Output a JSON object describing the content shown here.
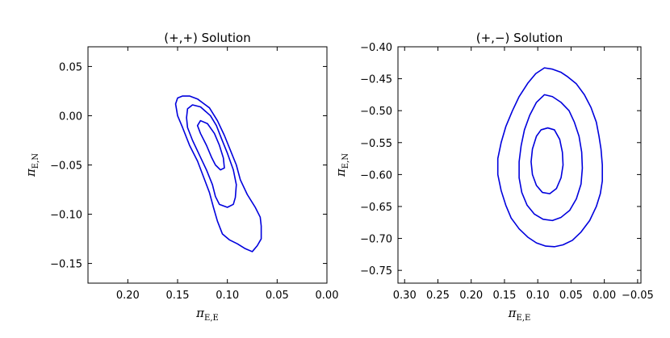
{
  "chart_data": [
    {
      "type": "contour",
      "title": "(+,+) Solution",
      "xlabel": "πE,E",
      "ylabel": "πE,N",
      "xlim": [
        0.24,
        0.0
      ],
      "ylim": [
        -0.17,
        0.07
      ],
      "xticks": [
        "0.20",
        "0.15",
        "0.10",
        "0.05",
        "0.00"
      ],
      "xtick_values": [
        0.2,
        0.15,
        0.1,
        0.05,
        0.0
      ],
      "yticks": [
        "0.05",
        "0.00",
        "−0.05",
        "−0.10",
        "−0.15"
      ],
      "ytick_values": [
        0.05,
        0.0,
        -0.05,
        -0.1,
        -0.15
      ],
      "grid": false,
      "line_color": "#0000dd",
      "contours": [
        {
          "level": "outer",
          "points": [
            [
              0.145,
              0.02
            ],
            [
              0.138,
              0.02
            ],
            [
              0.13,
              0.017
            ],
            [
              0.118,
              0.008
            ],
            [
              0.11,
              -0.005
            ],
            [
              0.103,
              -0.02
            ],
            [
              0.097,
              -0.035
            ],
            [
              0.091,
              -0.05
            ],
            [
              0.087,
              -0.065
            ],
            [
              0.08,
              -0.08
            ],
            [
              0.072,
              -0.093
            ],
            [
              0.067,
              -0.103
            ],
            [
              0.066,
              -0.112
            ],
            [
              0.066,
              -0.125
            ],
            [
              0.07,
              -0.132
            ],
            [
              0.075,
              -0.138
            ],
            [
              0.082,
              -0.135
            ],
            [
              0.09,
              -0.13
            ],
            [
              0.098,
              -0.126
            ],
            [
              0.105,
              -0.12
            ],
            [
              0.11,
              -0.107
            ],
            [
              0.114,
              -0.093
            ],
            [
              0.118,
              -0.078
            ],
            [
              0.124,
              -0.062
            ],
            [
              0.13,
              -0.046
            ],
            [
              0.138,
              -0.03
            ],
            [
              0.145,
              -0.012
            ],
            [
              0.15,
              0.0
            ],
            [
              0.152,
              0.012
            ],
            [
              0.15,
              0.018
            ],
            [
              0.145,
              0.02
            ]
          ]
        },
        {
          "level": "middle",
          "points": [
            [
              0.135,
              0.011
            ],
            [
              0.127,
              0.009
            ],
            [
              0.117,
              0.0
            ],
            [
              0.111,
              -0.01
            ],
            [
              0.106,
              -0.023
            ],
            [
              0.1,
              -0.038
            ],
            [
              0.094,
              -0.055
            ],
            [
              0.091,
              -0.07
            ],
            [
              0.092,
              -0.083
            ],
            [
              0.094,
              -0.09
            ],
            [
              0.1,
              -0.093
            ],
            [
              0.108,
              -0.09
            ],
            [
              0.112,
              -0.082
            ],
            [
              0.115,
              -0.07
            ],
            [
              0.121,
              -0.055
            ],
            [
              0.128,
              -0.04
            ],
            [
              0.135,
              -0.025
            ],
            [
              0.14,
              -0.012
            ],
            [
              0.141,
              -0.002
            ],
            [
              0.14,
              0.007
            ],
            [
              0.135,
              0.011
            ]
          ]
        },
        {
          "level": "inner",
          "points": [
            [
              0.127,
              -0.005
            ],
            [
              0.12,
              -0.008
            ],
            [
              0.113,
              -0.018
            ],
            [
              0.108,
              -0.03
            ],
            [
              0.104,
              -0.043
            ],
            [
              0.103,
              -0.053
            ],
            [
              0.107,
              -0.055
            ],
            [
              0.112,
              -0.05
            ],
            [
              0.116,
              -0.042
            ],
            [
              0.121,
              -0.03
            ],
            [
              0.127,
              -0.018
            ],
            [
              0.13,
              -0.01
            ],
            [
              0.127,
              -0.005
            ]
          ]
        }
      ]
    },
    {
      "type": "contour",
      "title": "(+,−) Solution",
      "xlabel": "πE,E",
      "ylabel": "πE,N",
      "xlim": [
        0.31,
        -0.055
      ],
      "ylim": [
        -0.77,
        -0.4
      ],
      "xticks": [
        "0.30",
        "0.25",
        "0.20",
        "0.15",
        "0.10",
        "0.05",
        "0.00",
        "−0.05"
      ],
      "xtick_values": [
        0.3,
        0.25,
        0.2,
        0.15,
        0.1,
        0.05,
        0.0,
        -0.05
      ],
      "yticks": [
        "−0.40",
        "−0.45",
        "−0.50",
        "−0.55",
        "−0.60",
        "−0.65",
        "−0.70",
        "−0.75"
      ],
      "ytick_values": [
        -0.4,
        -0.45,
        -0.5,
        -0.55,
        -0.6,
        -0.65,
        -0.7,
        -0.75
      ],
      "grid": false,
      "line_color": "#0000dd",
      "contours": [
        {
          "level": "outer",
          "points": [
            [
              0.09,
              -0.433
            ],
            [
              0.078,
              -0.435
            ],
            [
              0.065,
              -0.44
            ],
            [
              0.055,
              -0.447
            ],
            [
              0.042,
              -0.458
            ],
            [
              0.03,
              -0.475
            ],
            [
              0.02,
              -0.495
            ],
            [
              0.012,
              -0.518
            ],
            [
              0.008,
              -0.54
            ],
            [
              0.005,
              -0.56
            ],
            [
              0.003,
              -0.585
            ],
            [
              0.003,
              -0.61
            ],
            [
              0.006,
              -0.63
            ],
            [
              0.012,
              -0.65
            ],
            [
              0.022,
              -0.672
            ],
            [
              0.035,
              -0.69
            ],
            [
              0.048,
              -0.703
            ],
            [
              0.062,
              -0.71
            ],
            [
              0.075,
              -0.713
            ],
            [
              0.088,
              -0.712
            ],
            [
              0.102,
              -0.707
            ],
            [
              0.115,
              -0.698
            ],
            [
              0.128,
              -0.685
            ],
            [
              0.14,
              -0.668
            ],
            [
              0.148,
              -0.648
            ],
            [
              0.155,
              -0.625
            ],
            [
              0.16,
              -0.6
            ],
            [
              0.16,
              -0.575
            ],
            [
              0.155,
              -0.55
            ],
            [
              0.148,
              -0.525
            ],
            [
              0.138,
              -0.5
            ],
            [
              0.128,
              -0.478
            ],
            [
              0.115,
              -0.457
            ],
            [
              0.103,
              -0.442
            ],
            [
              0.09,
              -0.433
            ]
          ]
        },
        {
          "level": "middle",
          "points": [
            [
              0.09,
              -0.475
            ],
            [
              0.078,
              -0.478
            ],
            [
              0.065,
              -0.487
            ],
            [
              0.053,
              -0.5
            ],
            [
              0.045,
              -0.518
            ],
            [
              0.038,
              -0.54
            ],
            [
              0.034,
              -0.565
            ],
            [
              0.033,
              -0.59
            ],
            [
              0.035,
              -0.615
            ],
            [
              0.042,
              -0.638
            ],
            [
              0.052,
              -0.656
            ],
            [
              0.065,
              -0.667
            ],
            [
              0.078,
              -0.672
            ],
            [
              0.092,
              -0.67
            ],
            [
              0.105,
              -0.662
            ],
            [
              0.116,
              -0.648
            ],
            [
              0.124,
              -0.628
            ],
            [
              0.128,
              -0.605
            ],
            [
              0.128,
              -0.58
            ],
            [
              0.125,
              -0.555
            ],
            [
              0.12,
              -0.53
            ],
            [
              0.112,
              -0.507
            ],
            [
              0.102,
              -0.487
            ],
            [
              0.09,
              -0.475
            ]
          ]
        },
        {
          "level": "inner",
          "points": [
            [
              0.085,
              -0.527
            ],
            [
              0.075,
              -0.53
            ],
            [
              0.067,
              -0.545
            ],
            [
              0.063,
              -0.565
            ],
            [
              0.062,
              -0.585
            ],
            [
              0.065,
              -0.605
            ],
            [
              0.072,
              -0.622
            ],
            [
              0.082,
              -0.63
            ],
            [
              0.093,
              -0.628
            ],
            [
              0.102,
              -0.617
            ],
            [
              0.108,
              -0.6
            ],
            [
              0.11,
              -0.58
            ],
            [
              0.108,
              -0.56
            ],
            [
              0.102,
              -0.54
            ],
            [
              0.095,
              -0.53
            ],
            [
              0.085,
              -0.527
            ]
          ]
        }
      ]
    }
  ]
}
